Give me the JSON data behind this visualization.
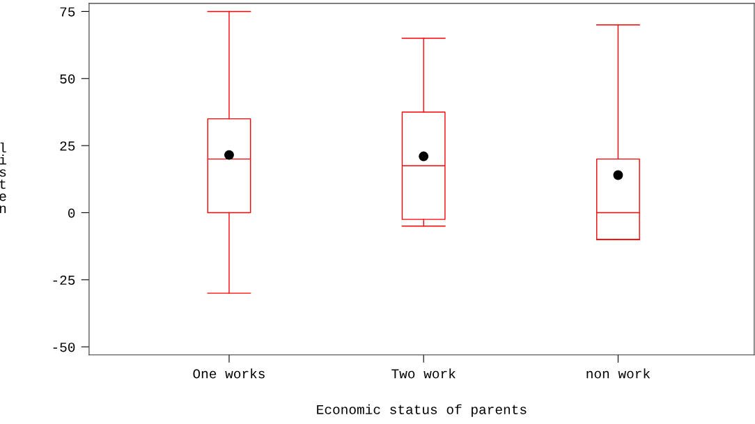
{
  "chart_data": {
    "type": "box",
    "xlabel": "Economic status of parents",
    "ylabel": "listen",
    "categories": [
      "One works",
      "Two work",
      "non work"
    ],
    "series": [
      {
        "color": "#ff0000",
        "boxes": [
          {
            "low": -30,
            "q1": 0,
            "median": 20,
            "q3": 35,
            "high": 75,
            "mean": 21.5
          },
          {
            "low": -5,
            "q1": -2.5,
            "median": 17.5,
            "q3": 37.5,
            "high": 65,
            "mean": 21
          },
          {
            "low": -10,
            "q1": -10,
            "median": 0,
            "q3": 20,
            "high": 70,
            "mean": 14
          }
        ]
      }
    ],
    "ylim": [
      -53,
      78
    ],
    "yticks": [
      -50,
      -25,
      0,
      25,
      50,
      75
    ],
    "grid": false
  }
}
